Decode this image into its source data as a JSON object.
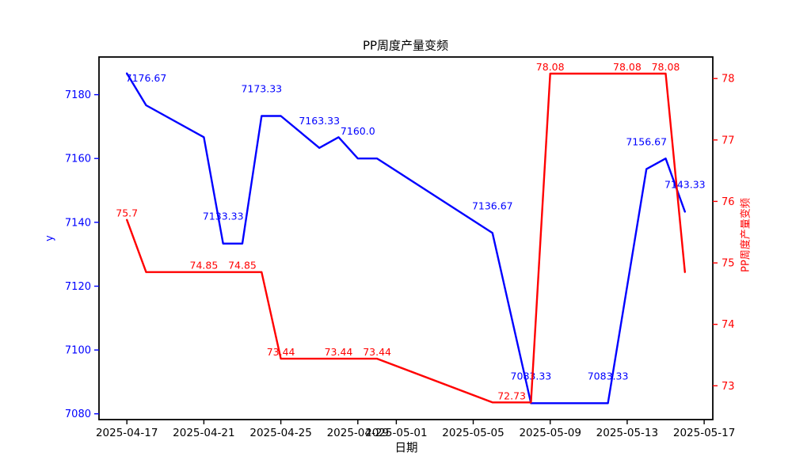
{
  "title": "PP周度产量变频",
  "chart_data": {
    "type": "line",
    "title": "PP周度产量变频",
    "xlabel": "日期",
    "ylabel_left": "y",
    "ylabel_right": "PP周度产量变频",
    "grid": false,
    "legend": "none",
    "x_base_date": "2025-04-17",
    "xlim_days": [
      -1.45,
      30.45
    ],
    "x_ticks": [
      {
        "day": 0,
        "label": "2025-04-17"
      },
      {
        "day": 4,
        "label": "2025-04-21"
      },
      {
        "day": 8,
        "label": "2025-04-25"
      },
      {
        "day": 12,
        "label": "2025-04-29"
      },
      {
        "day": 14,
        "label": "2025-05-01"
      },
      {
        "day": 18,
        "label": "2025-05-05"
      },
      {
        "day": 22,
        "label": "2025-05-09"
      },
      {
        "day": 26,
        "label": "2025-05-13"
      },
      {
        "day": 30,
        "label": "2025-05-17"
      }
    ],
    "left_axis": {
      "color": "#0000ff",
      "lim": [
        7078.2,
        7191.8
      ],
      "ticks": [
        7080,
        7100,
        7120,
        7140,
        7160,
        7180
      ]
    },
    "right_axis": {
      "color": "#ff0000",
      "lim": [
        72.45,
        78.35
      ],
      "ticks": [
        73,
        74,
        75,
        76,
        77,
        78
      ]
    },
    "series": [
      {
        "id": "production-line",
        "axis": "left",
        "color": "#0000ff",
        "label_dy": -30,
        "points": [
          [
            0,
            7186.67
          ],
          [
            1,
            7176.67
          ],
          [
            4,
            7166.67
          ],
          [
            5,
            7133.33
          ],
          [
            6,
            7133.33
          ],
          [
            7,
            7173.33
          ],
          [
            8,
            7173.33
          ],
          [
            10,
            7163.33
          ],
          [
            11,
            7166.67
          ],
          [
            12,
            7160.0
          ],
          [
            13,
            7160.0
          ],
          [
            19,
            7136.67
          ],
          [
            21,
            7083.33
          ],
          [
            25,
            7083.33
          ],
          [
            27,
            7156.67
          ],
          [
            28,
            7160.0
          ],
          [
            29,
            7143.33
          ]
        ],
        "annotations": [
          {
            "day": 1,
            "value": 7176.67,
            "text": "7176.67"
          },
          {
            "day": 5,
            "value": 7133.33,
            "text": "7133.33"
          },
          {
            "day": 7,
            "value": 7173.33,
            "text": "7173.33"
          },
          {
            "day": 10,
            "value": 7163.33,
            "text": "7163.33"
          },
          {
            "day": 12,
            "value": 7160.0,
            "text": "7160.0"
          },
          {
            "day": 19,
            "value": 7136.67,
            "text": "7136.67"
          },
          {
            "day": 21,
            "value": 7083.33,
            "text": "7083.33"
          },
          {
            "day": 25,
            "value": 7083.33,
            "text": "7083.33"
          },
          {
            "day": 27,
            "value": 7156.67,
            "text": "7156.67"
          },
          {
            "day": 29,
            "value": 7143.33,
            "text": "7143.33"
          }
        ]
      },
      {
        "id": "rate-line",
        "axis": "right",
        "color": "#ff0000",
        "label_dy": -4,
        "points": [
          [
            0,
            75.7
          ],
          [
            1,
            74.85
          ],
          [
            7,
            74.85
          ],
          [
            8,
            73.44
          ],
          [
            13,
            73.44
          ],
          [
            19,
            72.73
          ],
          [
            21,
            72.73
          ],
          [
            22,
            78.08
          ],
          [
            28,
            78.08
          ],
          [
            29,
            74.85
          ]
        ],
        "annotations": [
          {
            "day": 0,
            "value": 75.7,
            "text": "75.7"
          },
          {
            "day": 4,
            "value": 74.85,
            "text": "74.85"
          },
          {
            "day": 6,
            "value": 74.85,
            "text": "74.85"
          },
          {
            "day": 8,
            "value": 73.44,
            "text": "73.44"
          },
          {
            "day": 11,
            "value": 73.44,
            "text": "73.44"
          },
          {
            "day": 13,
            "value": 73.44,
            "text": "73.44"
          },
          {
            "day": 20,
            "value": 72.73,
            "text": "72.73"
          },
          {
            "day": 22,
            "value": 78.08,
            "text": "78.08"
          },
          {
            "day": 26,
            "value": 78.08,
            "text": "78.08"
          },
          {
            "day": 28,
            "value": 78.08,
            "text": "78.08"
          }
        ]
      }
    ]
  }
}
